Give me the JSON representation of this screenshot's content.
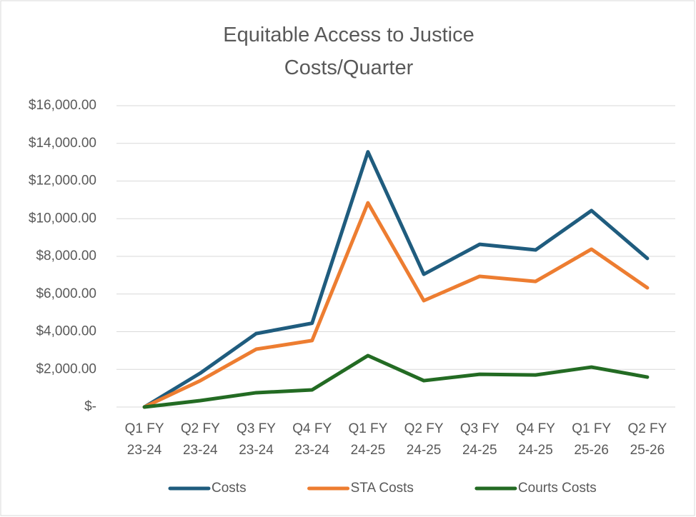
{
  "chart_data": {
    "type": "line",
    "title": "Equitable Access to Justice\nCosts/Quarter",
    "categories": [
      "Q1 FY\n23-24",
      "Q2 FY\n23-24",
      "Q3 FY\n23-24",
      "Q4 FY\n23-24",
      "Q1 FY\n24-25",
      "Q2 FY\n24-25",
      "Q3 FY\n24-25",
      "Q4 FY\n24-25",
      "Q1 FY\n25-26",
      "Q2 FY\n25-26"
    ],
    "series": [
      {
        "name": "Costs",
        "color": "#1f5c7e",
        "values": [
          0,
          1800,
          3900,
          4450,
          13550,
          7050,
          8640,
          8340,
          10430,
          7890
        ]
      },
      {
        "name": "STA Costs",
        "color": "#ed7d31",
        "values": [
          0,
          1400,
          3070,
          3530,
          10840,
          5650,
          6940,
          6670,
          8380,
          6330
        ]
      },
      {
        "name": "Courts Costs",
        "color": "#236b23",
        "values": [
          0,
          340,
          760,
          910,
          2730,
          1400,
          1740,
          1700,
          2120,
          1590
        ]
      }
    ],
    "ylim": [
      0,
      16000
    ],
    "yticks": [
      {
        "value": 0,
        "label": "$-"
      },
      {
        "value": 2000,
        "label": "$2,000.00"
      },
      {
        "value": 4000,
        "label": "$4,000.00"
      },
      {
        "value": 6000,
        "label": "$6,000.00"
      },
      {
        "value": 8000,
        "label": "$8,000.00"
      },
      {
        "value": 10000,
        "label": "$10,000.00"
      },
      {
        "value": 12000,
        "label": "$12,000.00"
      },
      {
        "value": 14000,
        "label": "$14,000.00"
      },
      {
        "value": 16000,
        "label": "$16,000.00"
      }
    ],
    "grid": true,
    "legend": "bottom"
  }
}
